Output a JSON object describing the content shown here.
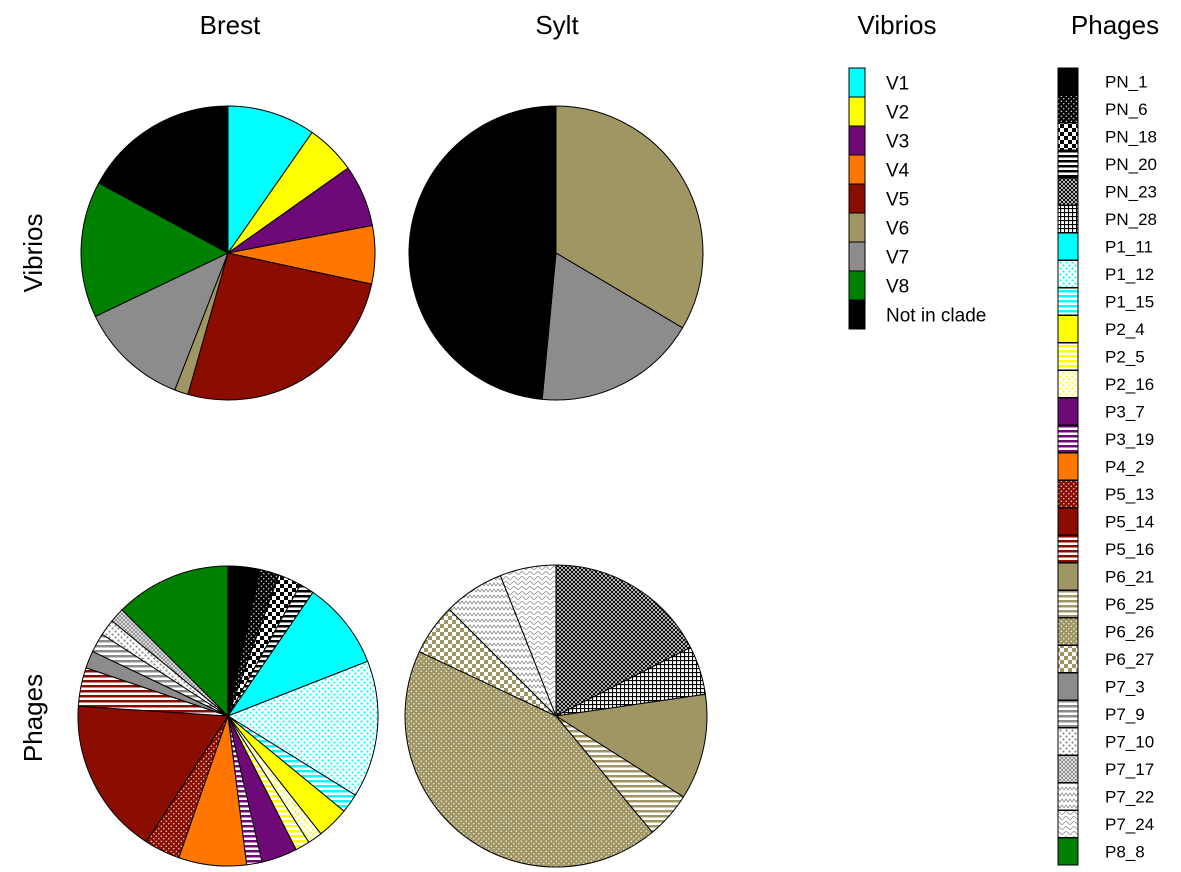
{
  "titles": {
    "brest": "Brest",
    "sylt": "Sylt",
    "row_vibrios": "Vibrios",
    "row_phages": "Phages"
  },
  "legends": {
    "vibrios": {
      "title": "Vibrios",
      "items": [
        {
          "key": "V1",
          "label": "V1"
        },
        {
          "key": "V2",
          "label": "V2"
        },
        {
          "key": "V3",
          "label": "V3"
        },
        {
          "key": "V4",
          "label": "V4"
        },
        {
          "key": "V5",
          "label": "V5"
        },
        {
          "key": "V6",
          "label": "V6"
        },
        {
          "key": "V7",
          "label": "V7"
        },
        {
          "key": "V8",
          "label": "V8"
        },
        {
          "key": "NC",
          "label": "Not in clade"
        }
      ]
    },
    "phages": {
      "title": "Phages",
      "items": [
        {
          "key": "PN_1",
          "label": "PN_1"
        },
        {
          "key": "PN_6",
          "label": "PN_6"
        },
        {
          "key": "PN_18",
          "label": "PN_18"
        },
        {
          "key": "PN_20",
          "label": "PN_20"
        },
        {
          "key": "PN_23",
          "label": "PN_23"
        },
        {
          "key": "PN_28",
          "label": "PN_28"
        },
        {
          "key": "P1_11",
          "label": "P1_11"
        },
        {
          "key": "P1_12",
          "label": "P1_12"
        },
        {
          "key": "P1_15",
          "label": "P1_15"
        },
        {
          "key": "P2_4",
          "label": "P2_4"
        },
        {
          "key": "P2_5",
          "label": "P2_5"
        },
        {
          "key": "P2_16",
          "label": "P2_16"
        },
        {
          "key": "P3_7",
          "label": "P3_7"
        },
        {
          "key": "P3_19",
          "label": "P3_19"
        },
        {
          "key": "P4_2",
          "label": "P4_2"
        },
        {
          "key": "P5_13",
          "label": "P5_13"
        },
        {
          "key": "P5_14",
          "label": "P5_14"
        },
        {
          "key": "P5_16",
          "label": "P5_16"
        },
        {
          "key": "P6_21",
          "label": "P6_21"
        },
        {
          "key": "P6_25",
          "label": "P6_25"
        },
        {
          "key": "P6_26",
          "label": "P6_26"
        },
        {
          "key": "P6_27",
          "label": "P6_27"
        },
        {
          "key": "P7_3",
          "label": "P7_3"
        },
        {
          "key": "P7_9",
          "label": "P7_9"
        },
        {
          "key": "P7_10",
          "label": "P7_10"
        },
        {
          "key": "P7_17",
          "label": "P7_17"
        },
        {
          "key": "P7_22",
          "label": "P7_22"
        },
        {
          "key": "P7_24",
          "label": "P7_24"
        },
        {
          "key": "P8_8",
          "label": "P8_8"
        }
      ]
    }
  },
  "styles": {
    "V1": {
      "color": "#00ffff",
      "pattern": "solid"
    },
    "V2": {
      "color": "#ffff00",
      "pattern": "solid"
    },
    "V3": {
      "color": "#6e0a78",
      "pattern": "solid"
    },
    "V4": {
      "color": "#ff7700",
      "pattern": "solid"
    },
    "V5": {
      "color": "#8b0d00",
      "pattern": "solid"
    },
    "V6": {
      "color": "#a09664",
      "pattern": "solid"
    },
    "V7": {
      "color": "#8c8c8c",
      "pattern": "solid"
    },
    "V8": {
      "color": "#008000",
      "pattern": "solid"
    },
    "NC": {
      "color": "#000000",
      "pattern": "solid"
    },
    "PN_1": {
      "color": "#000000",
      "pattern": "solid"
    },
    "PN_6": {
      "color": "#000000",
      "pattern": "dots-light"
    },
    "PN_18": {
      "color": "#000000",
      "pattern": "checker"
    },
    "PN_20": {
      "color": "#000000",
      "pattern": "hlines"
    },
    "PN_23": {
      "color": "#000000",
      "pattern": "crosshatch"
    },
    "PN_28": {
      "color": "#000000",
      "pattern": "grid"
    },
    "P1_11": {
      "color": "#00ffff",
      "pattern": "solid"
    },
    "P1_12": {
      "color": "#00ffff",
      "pattern": "dots"
    },
    "P1_15": {
      "color": "#00ffff",
      "pattern": "hlines"
    },
    "P2_4": {
      "color": "#ffff00",
      "pattern": "solid"
    },
    "P2_5": {
      "color": "#ffff00",
      "pattern": "hlines"
    },
    "P2_16": {
      "color": "#ffff00",
      "pattern": "dots"
    },
    "P3_7": {
      "color": "#6e0a78",
      "pattern": "solid"
    },
    "P3_19": {
      "color": "#6e0a78",
      "pattern": "hlines"
    },
    "P4_2": {
      "color": "#ff7700",
      "pattern": "solid"
    },
    "P5_13": {
      "color": "#8b0d00",
      "pattern": "dots-light"
    },
    "P5_14": {
      "color": "#8b0d00",
      "pattern": "solid"
    },
    "P5_16": {
      "color": "#8b0d00",
      "pattern": "hlines"
    },
    "P6_21": {
      "color": "#a09664",
      "pattern": "solid"
    },
    "P6_25": {
      "color": "#a09664",
      "pattern": "hlines"
    },
    "P6_26": {
      "color": "#a09664",
      "pattern": "dots-light"
    },
    "P6_27": {
      "color": "#a09664",
      "pattern": "checker"
    },
    "P7_3": {
      "color": "#8c8c8c",
      "pattern": "solid"
    },
    "P7_9": {
      "color": "#8c8c8c",
      "pattern": "hlines"
    },
    "P7_10": {
      "color": "#8c8c8c",
      "pattern": "dots"
    },
    "P7_17": {
      "color": "#8c8c8c",
      "pattern": "crosshatch"
    },
    "P7_22": {
      "color": "#8c8c8c",
      "pattern": "zigzag"
    },
    "P7_24": {
      "color": "#8c8c8c",
      "pattern": "waves"
    },
    "P8_8": {
      "color": "#008000",
      "pattern": "solid"
    }
  },
  "chart_data": [
    {
      "type": "pie",
      "title": "Brest",
      "row": "Vibrios",
      "slices": [
        {
          "key": "V1",
          "value": 9.7
        },
        {
          "key": "V2",
          "value": 5.5
        },
        {
          "key": "V3",
          "value": 6.8
        },
        {
          "key": "V4",
          "value": 6.4
        },
        {
          "key": "V5",
          "value": 26.0
        },
        {
          "key": "V6",
          "value": 1.5
        },
        {
          "key": "V7",
          "value": 12.0
        },
        {
          "key": "V8",
          "value": 15.0
        },
        {
          "key": "NC",
          "value": 17.1
        }
      ]
    },
    {
      "type": "pie",
      "title": "Sylt",
      "row": "Vibrios",
      "slices": [
        {
          "key": "V6",
          "value": 33.5
        },
        {
          "key": "V7",
          "value": 18.0
        },
        {
          "key": "NC",
          "value": 48.5
        }
      ]
    },
    {
      "type": "pie",
      "title": "Brest",
      "row": "Phages",
      "slices": [
        {
          "key": "PN_1",
          "value": 3.3
        },
        {
          "key": "PN_6",
          "value": 2.0
        },
        {
          "key": "PN_18",
          "value": 2.4
        },
        {
          "key": "PN_20",
          "value": 1.5
        },
        {
          "key": "P1_11",
          "value": 9.1
        },
        {
          "key": "P1_12",
          "value": 14.2
        },
        {
          "key": "P1_15",
          "value": 2.0
        },
        {
          "key": "P2_4",
          "value": 3.3
        },
        {
          "key": "P2_16",
          "value": 1.5
        },
        {
          "key": "P2_5",
          "value": 1.5
        },
        {
          "key": "P3_7",
          "value": 3.7
        },
        {
          "key": "P3_19",
          "value": 1.6
        },
        {
          "key": "P4_2",
          "value": 7.0
        },
        {
          "key": "P5_13",
          "value": 3.7
        },
        {
          "key": "P5_14",
          "value": 16.2
        },
        {
          "key": "P5_16",
          "value": 4.0
        },
        {
          "key": "P7_3",
          "value": 1.8
        },
        {
          "key": "P7_9",
          "value": 2.0
        },
        {
          "key": "P7_10",
          "value": 1.7
        },
        {
          "key": "P7_17",
          "value": 1.5
        },
        {
          "key": "P8_8",
          "value": 12.0
        }
      ]
    },
    {
      "type": "pie",
      "title": "Sylt",
      "row": "Phages",
      "slices": [
        {
          "key": "PN_23",
          "value": 17.5
        },
        {
          "key": "PN_28",
          "value": 5.2
        },
        {
          "key": "P6_21",
          "value": 11.3
        },
        {
          "key": "P6_25",
          "value": 5.0
        },
        {
          "key": "P6_26",
          "value": 43.0
        },
        {
          "key": "P6_27",
          "value": 5.5
        },
        {
          "key": "P7_22",
          "value": 6.5
        },
        {
          "key": "P7_24",
          "value": 6.0
        }
      ]
    }
  ]
}
